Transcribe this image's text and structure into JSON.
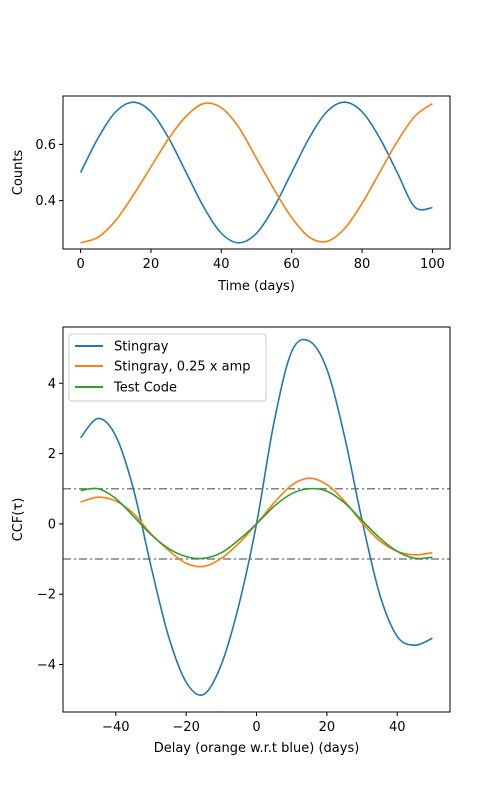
{
  "chart_data": [
    {
      "type": "line",
      "title": "",
      "xlabel": "Time (days)",
      "ylabel": "Counts",
      "xlim": [
        -5,
        105
      ],
      "ylim": [
        0.228,
        0.772
      ],
      "xticks": [
        0,
        20,
        40,
        60,
        80,
        100
      ],
      "yticks": [
        0.4,
        0.6
      ],
      "xtick_labels": [
        "0",
        "20",
        "40",
        "60",
        "80",
        "100"
      ],
      "ytick_labels": [
        "0.4",
        "0.6"
      ],
      "grid": false,
      "x": [
        0,
        5,
        10,
        15,
        20,
        25,
        30,
        35,
        40,
        45,
        50,
        55,
        60,
        65,
        70,
        75,
        80,
        85,
        90,
        95,
        100
      ],
      "series": [
        {
          "color": "#1f77b4",
          "values": [
            0.5,
            0.623,
            0.716,
            0.75,
            0.716,
            0.623,
            0.5,
            0.377,
            0.284,
            0.25,
            0.284,
            0.377,
            0.5,
            0.623,
            0.716,
            0.75,
            0.716,
            0.623,
            0.5,
            0.377,
            0.375
          ]
        },
        {
          "color": "#ff7f0e",
          "values": [
            0.25,
            0.27,
            0.33,
            0.42,
            0.52,
            0.62,
            0.7,
            0.745,
            0.73,
            0.66,
            0.55,
            0.44,
            0.34,
            0.27,
            0.255,
            0.3,
            0.39,
            0.5,
            0.61,
            0.7,
            0.745
          ]
        }
      ]
    },
    {
      "type": "line",
      "title": "",
      "xlabel": "Delay (orange w.r.t blue) (days)",
      "ylabel": "CCF(τ)",
      "xlim": [
        -55,
        55
      ],
      "ylim": [
        -5.35,
        5.6
      ],
      "xticks": [
        -40,
        -20,
        0,
        20,
        40
      ],
      "yticks": [
        -4,
        -2,
        0,
        2,
        4
      ],
      "xtick_labels": [
        "−40",
        "−20",
        "0",
        "20",
        "40"
      ],
      "ytick_labels": [
        "−4",
        "−2",
        "0",
        "2",
        "4"
      ],
      "grid": false,
      "legend_position": "upper-left",
      "hlines": [
        1,
        -1
      ],
      "x": [
        -50,
        -45,
        -40,
        -35,
        -30,
        -25,
        -20,
        -15,
        -10,
        -5,
        0,
        5,
        10,
        15,
        20,
        25,
        30,
        35,
        40,
        45,
        50
      ],
      "series": [
        {
          "name": "Stingray",
          "color": "#1f77b4",
          "values": [
            2.45,
            3.0,
            2.5,
            1.0,
            -1.2,
            -3.2,
            -4.5,
            -4.85,
            -4.0,
            -2.3,
            0.0,
            2.9,
            4.9,
            5.2,
            4.4,
            2.5,
            0.1,
            -2.0,
            -3.2,
            -3.45,
            -3.25
          ]
        },
        {
          "name": "Stingray, 0.25 x amp",
          "color": "#ff7f0e",
          "values": [
            0.62,
            0.76,
            0.65,
            0.3,
            -0.28,
            -0.75,
            -1.12,
            -1.21,
            -0.98,
            -0.55,
            0.0,
            0.6,
            1.1,
            1.3,
            1.12,
            0.65,
            0.03,
            -0.48,
            -0.78,
            -0.88,
            -0.82
          ]
        },
        {
          "name": "Test Code",
          "color": "#2ca02c",
          "values": [
            0.95,
            1.0,
            0.72,
            0.22,
            -0.3,
            -0.7,
            -0.93,
            -0.98,
            -0.82,
            -0.45,
            0.0,
            0.5,
            0.86,
            1.0,
            0.93,
            0.6,
            0.1,
            -0.4,
            -0.78,
            -0.98,
            -0.95
          ]
        }
      ]
    }
  ]
}
